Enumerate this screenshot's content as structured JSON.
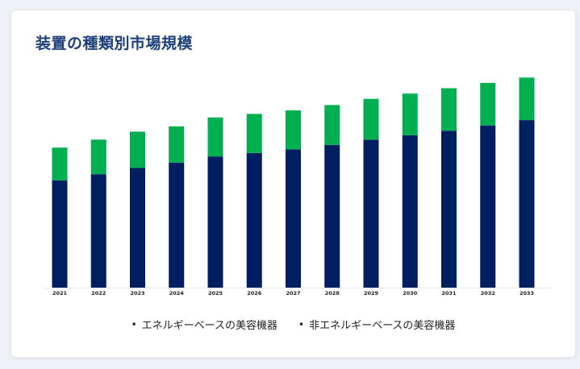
{
  "title": "装置の種類別市場規模",
  "chart_data": {
    "type": "bar",
    "stacked": true,
    "categories": [
      "2021",
      "2022",
      "2023",
      "2024",
      "2025",
      "2026",
      "2027",
      "2028",
      "2029",
      "2030",
      "2031",
      "2032",
      "2033"
    ],
    "series": [
      {
        "name": "エネルギーベースの美容機器",
        "color": "#001f60",
        "values": [
          12.1,
          12.8,
          13.5,
          14.1,
          14.8,
          15.2,
          15.6,
          16.1,
          16.7,
          17.2,
          17.7,
          18.3,
          18.9
        ]
      },
      {
        "name": "非エネルギーベースの美容機器",
        "color": "#00b050",
        "values": [
          3.7,
          3.9,
          4.1,
          4.1,
          4.4,
          4.4,
          4.4,
          4.5,
          4.6,
          4.7,
          4.8,
          4.8,
          4.8
        ]
      }
    ],
    "ylim": [
      0,
      25
    ],
    "grid": false,
    "legend": "bottom"
  },
  "legend_bullet": "•"
}
